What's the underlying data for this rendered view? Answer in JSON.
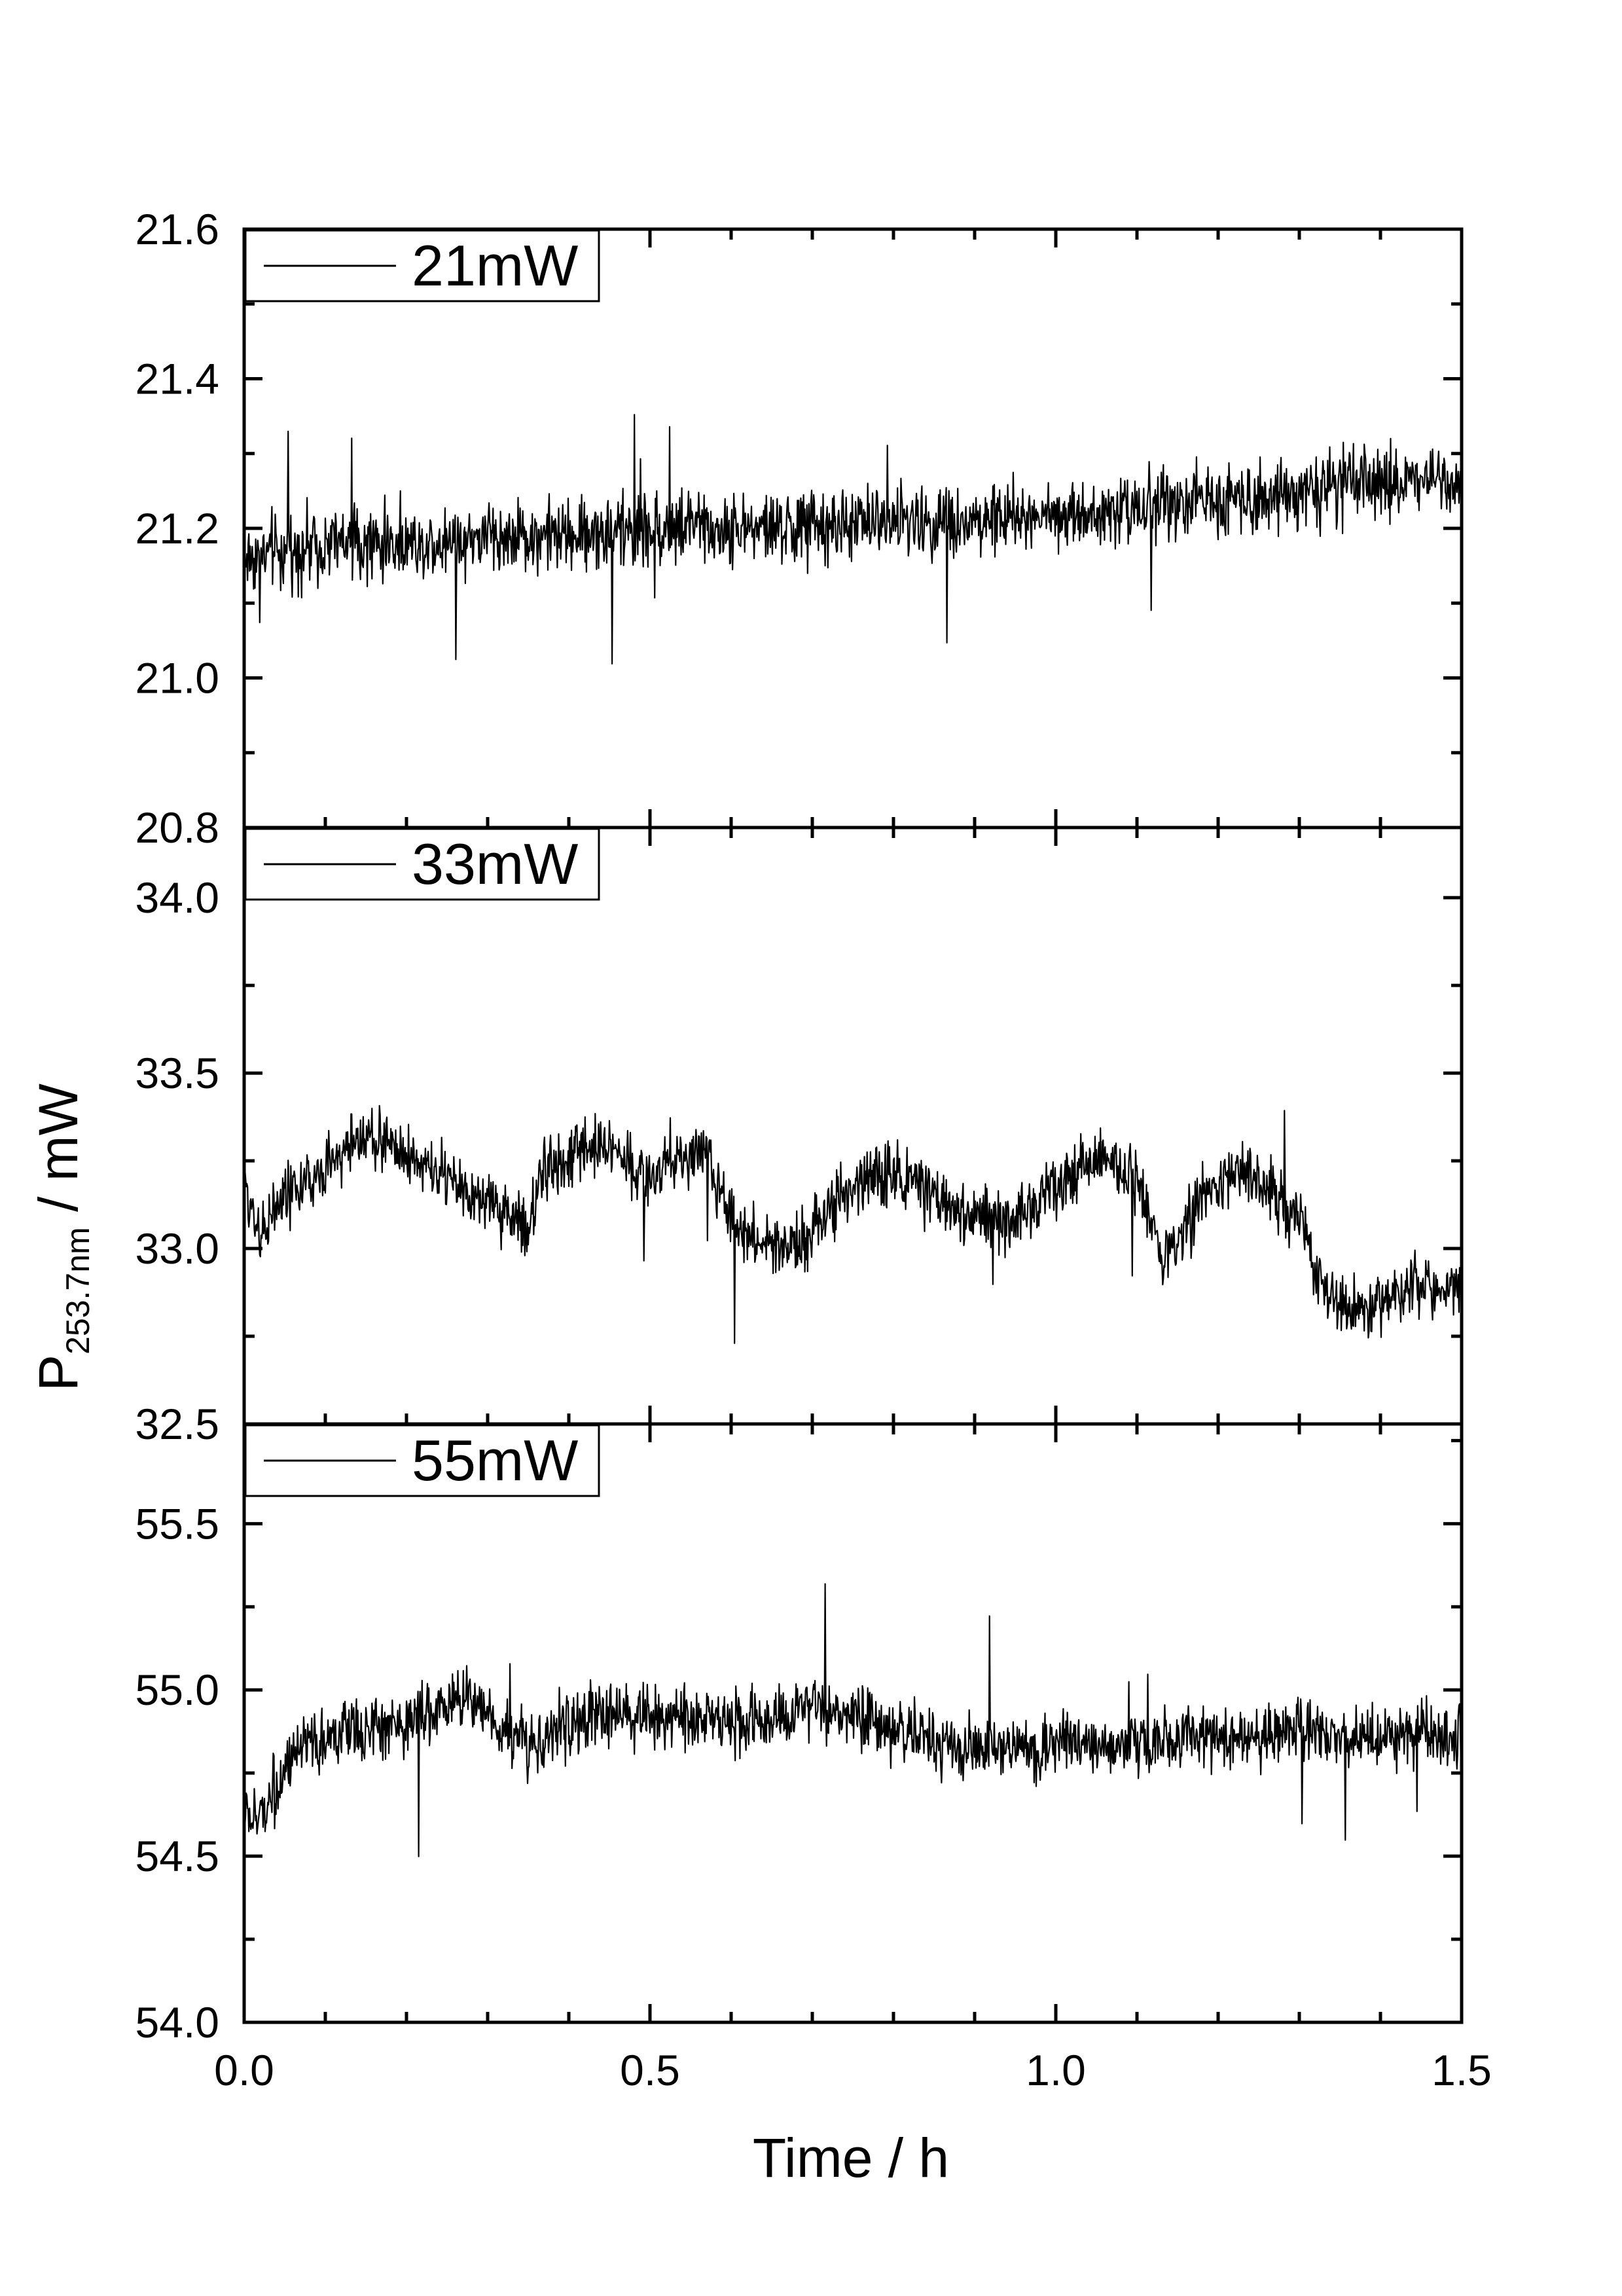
{
  "chart_data": {
    "type": "line",
    "xlabel": "Time / h",
    "ylabel": {
      "main": "P",
      "sub": "253.7nm",
      "unit": " / mW"
    },
    "xlim": [
      0,
      1.5
    ],
    "x_ticks": [
      "0.0",
      "0.5",
      "1.0",
      "1.5"
    ],
    "grid": false,
    "legend_position": "top-left",
    "panels": [
      {
        "series_name": "21mW",
        "ylim": [
          20.8,
          21.6
        ],
        "y_ticks": [
          "20.8",
          "21.0",
          "21.2",
          "21.4",
          "21.6"
        ],
        "noise_amplitude": 0.03,
        "trend": {
          "x": [
            0.0,
            0.05,
            0.1,
            0.2,
            0.3,
            0.4,
            0.5,
            0.6,
            0.7,
            0.8,
            0.9,
            1.0,
            1.1,
            1.2,
            1.3,
            1.4,
            1.5
          ],
          "y": [
            21.16,
            21.17,
            21.18,
            21.18,
            21.19,
            21.19,
            21.2,
            21.2,
            21.2,
            21.21,
            21.21,
            21.22,
            21.23,
            21.24,
            21.25,
            21.26,
            21.27
          ]
        }
      },
      {
        "series_name": "33mW",
        "ylim": [
          32.5,
          34.2
        ],
        "y_ticks": [
          "32.5",
          "33.0",
          "33.5",
          "34.0"
        ],
        "noise_amplitude": 0.055,
        "trend": {
          "x": [
            0.0,
            0.02,
            0.05,
            0.1,
            0.14,
            0.18,
            0.22,
            0.26,
            0.3,
            0.33,
            0.35,
            0.37,
            0.4,
            0.43,
            0.46,
            0.5,
            0.53,
            0.57,
            0.6,
            0.63,
            0.66,
            0.7,
            0.74,
            0.78,
            0.82,
            0.86,
            0.9,
            0.94,
            0.98,
            1.02,
            1.06,
            1.1,
            1.13,
            1.15,
            1.18,
            1.22,
            1.26,
            1.3,
            1.33,
            1.36,
            1.4,
            1.45,
            1.5
          ],
          "y": [
            33.18,
            33.05,
            33.15,
            33.22,
            33.32,
            33.3,
            33.24,
            33.18,
            33.12,
            33.1,
            33.05,
            33.22,
            33.25,
            33.3,
            33.28,
            33.2,
            33.26,
            33.27,
            33.08,
            33.02,
            33.0,
            33.05,
            33.15,
            33.22,
            33.2,
            33.12,
            33.1,
            33.06,
            33.15,
            33.22,
            33.26,
            33.18,
            33.0,
            33.02,
            33.15,
            33.22,
            33.18,
            33.08,
            32.88,
            32.82,
            32.86,
            32.9,
            32.88
          ]
        }
      },
      {
        "series_name": "55mW",
        "ylim": [
          54.0,
          55.8
        ],
        "y_ticks": [
          "54.0",
          "54.5",
          "55.0",
          "55.5"
        ],
        "noise_amplitude": 0.06,
        "trend": {
          "x": [
            0.0,
            0.01,
            0.02,
            0.03,
            0.05,
            0.08,
            0.1,
            0.15,
            0.2,
            0.25,
            0.28,
            0.3,
            0.33,
            0.36,
            0.4,
            0.45,
            0.5,
            0.55,
            0.6,
            0.65,
            0.7,
            0.75,
            0.8,
            0.85,
            0.9,
            0.95,
            1.0,
            1.05,
            1.1,
            1.15,
            1.2,
            1.25,
            1.3,
            1.35,
            1.4,
            1.45,
            1.5
          ],
          "y": [
            54.65,
            54.6,
            54.62,
            54.68,
            54.75,
            54.82,
            54.86,
            54.88,
            54.9,
            54.96,
            54.98,
            54.94,
            54.86,
            54.84,
            54.9,
            54.93,
            54.92,
            54.92,
            54.91,
            54.9,
            54.94,
            54.92,
            54.88,
            54.86,
            54.82,
            54.82,
            54.83,
            54.83,
            54.84,
            54.85,
            54.86,
            54.86,
            54.87,
            54.87,
            54.86,
            54.87,
            54.86
          ]
        }
      }
    ]
  }
}
